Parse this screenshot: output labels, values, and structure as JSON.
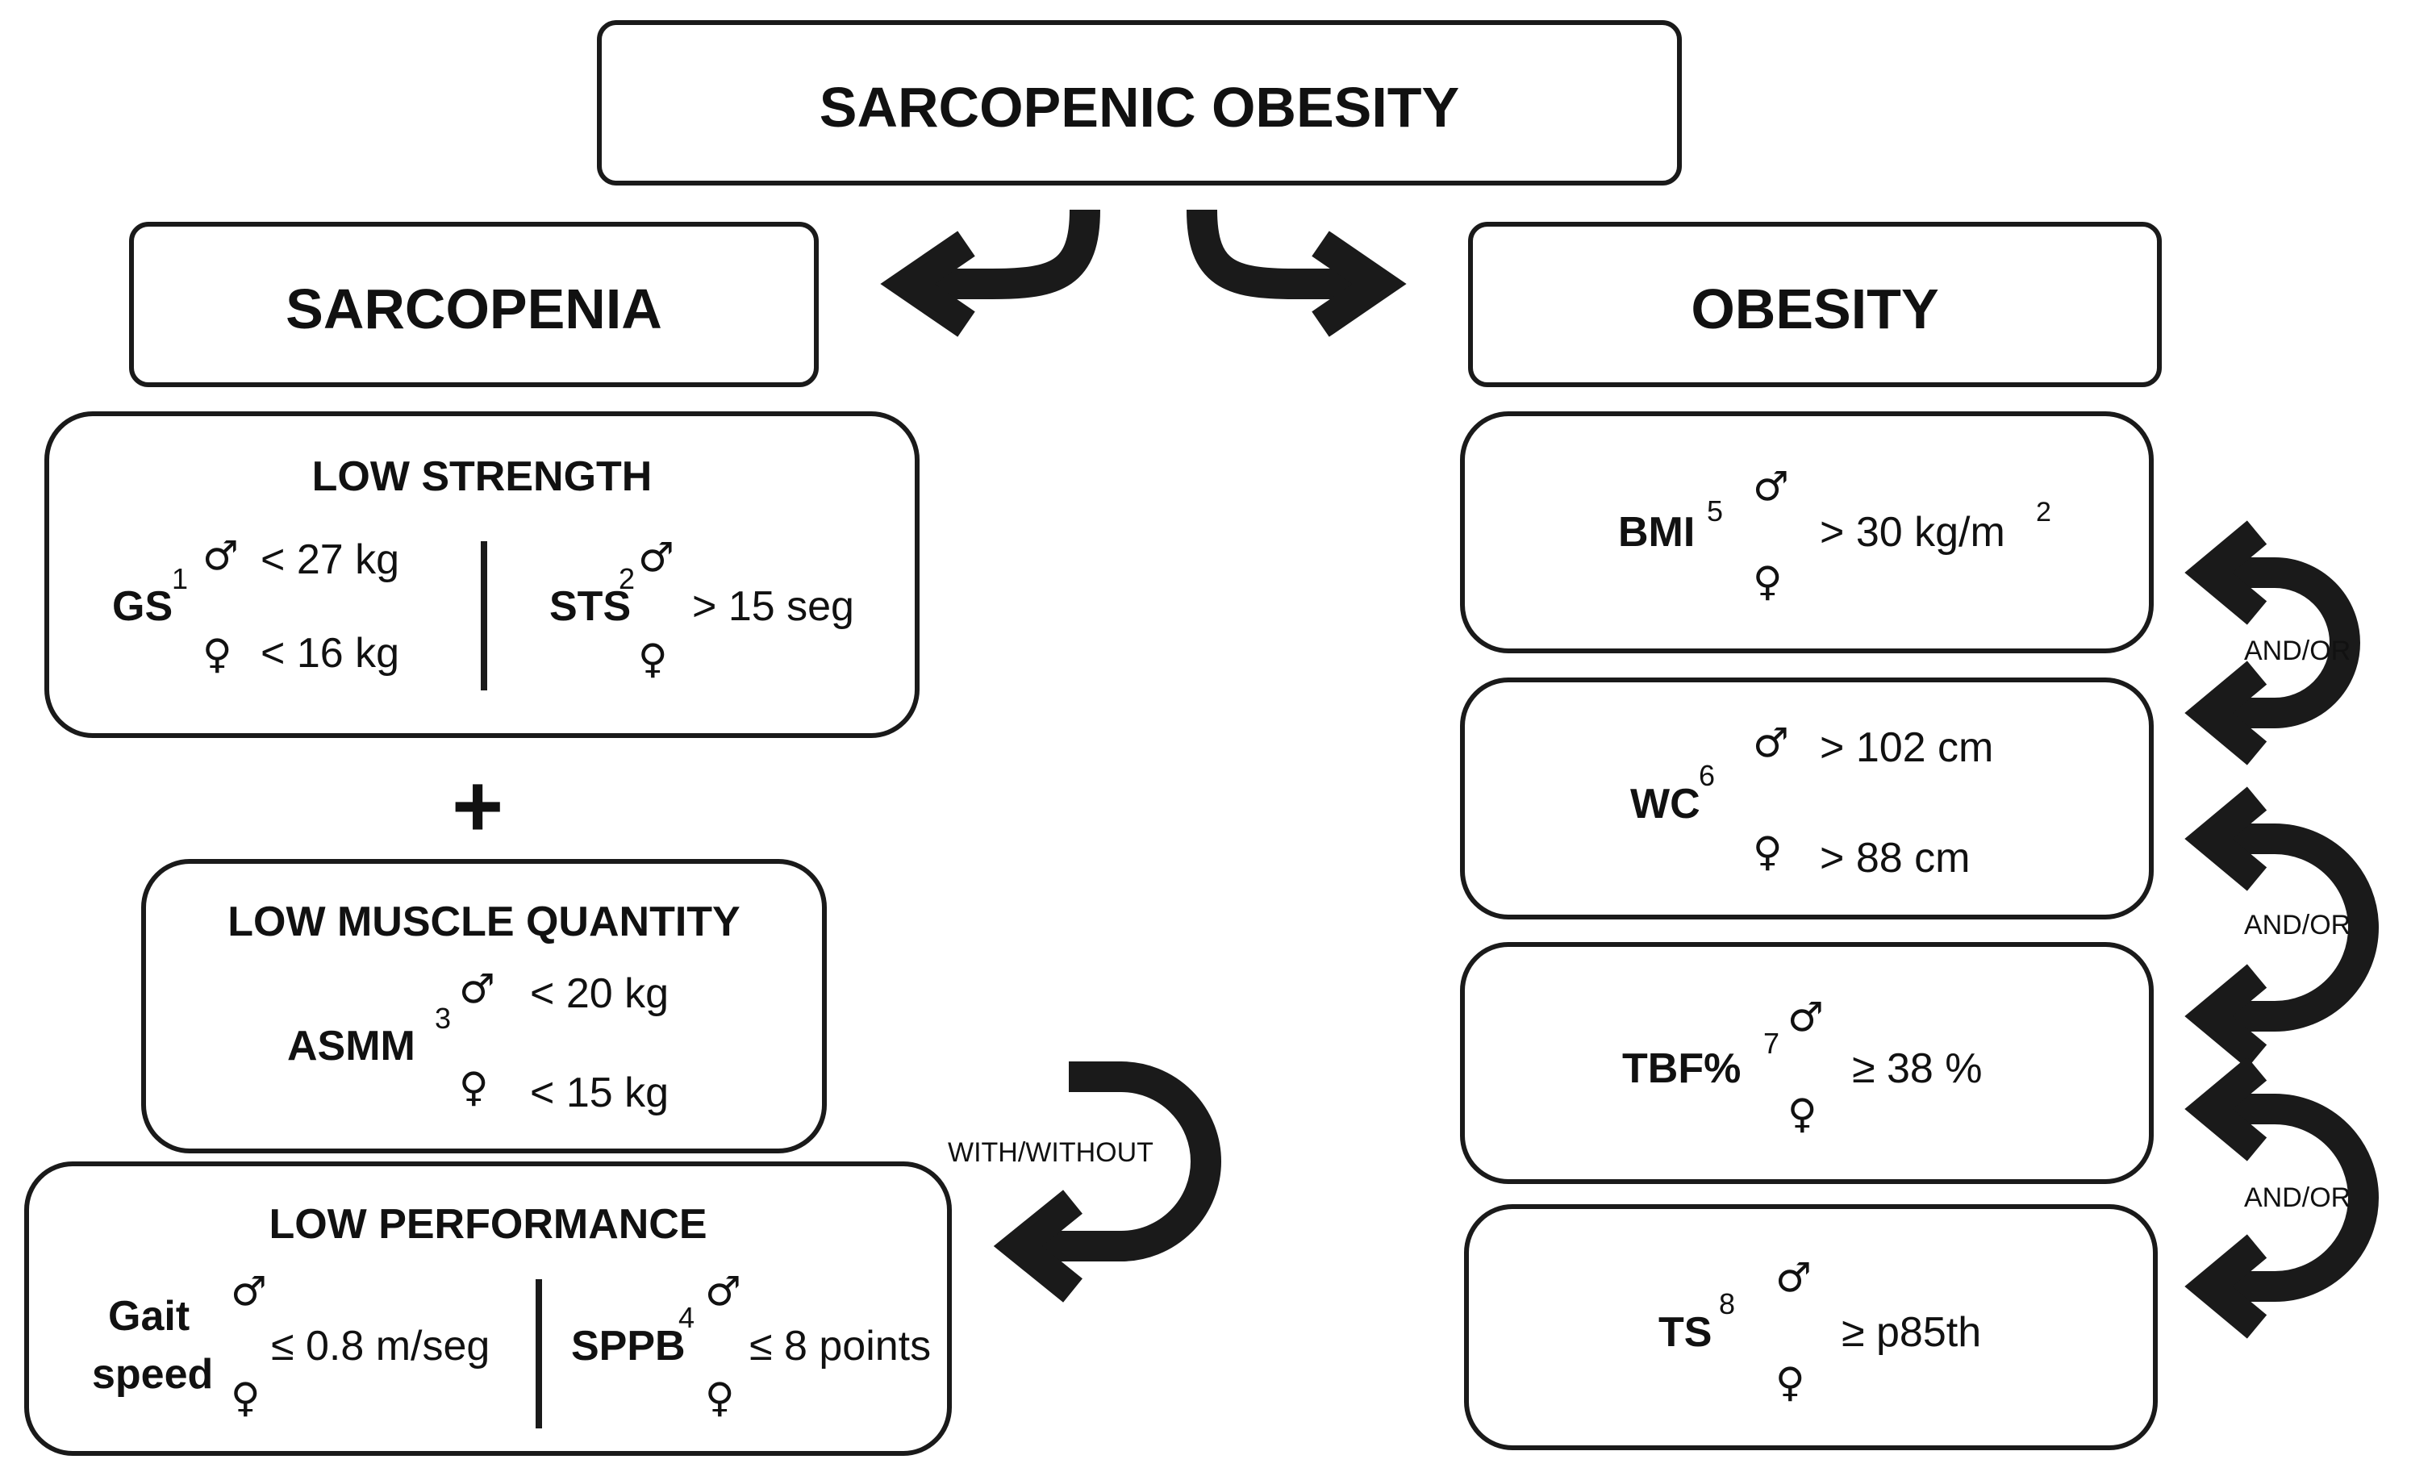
{
  "title": "SARCOPENIC OBESITY",
  "sarcopenia": {
    "label": "SARCOPENIA",
    "low_strength": {
      "title": "LOW STRENGTH",
      "gs": {
        "label": "GS",
        "ref": "1",
        "male": "< 27 kg",
        "female": "< 16 kg"
      },
      "sts": {
        "label": "STS",
        "ref": "2",
        "value": "> 15 seg"
      }
    },
    "plus": "+",
    "low_muscle_quantity": {
      "title": "LOW MUSCLE QUANTITY",
      "asmm": {
        "label": "ASMM",
        "ref": "3",
        "male": "< 20 kg",
        "female": "< 15 kg"
      }
    },
    "connector_with_without": "WITH/WITHOUT",
    "low_performance": {
      "title": "LOW PERFORMANCE",
      "gait": {
        "label_line1": "Gait",
        "label_line2": "speed",
        "value": "≤ 0.8 m/seg"
      },
      "sppb": {
        "label": "SPPB",
        "ref": "4",
        "value": "≤ 8 points"
      }
    }
  },
  "obesity": {
    "label": "OBESITY",
    "bmi": {
      "label": "BMI",
      "ref": "5",
      "value": "> 30 kg/m",
      "value_sup": "2"
    },
    "wc": {
      "label": "WC",
      "ref": "6",
      "male": "> 102 cm",
      "female": "> 88 cm"
    },
    "tbf": {
      "label": "TBF%",
      "ref": "7",
      "value": "≥ 38 %"
    },
    "ts": {
      "label": "TS",
      "ref": "8",
      "value": "≥ p85th"
    },
    "connectors": [
      "AND/OR",
      "AND/OR",
      "AND/OR"
    ]
  },
  "symbols": {
    "male": "♂",
    "female": "♀"
  },
  "colors": {
    "stroke": "#1a1a1a",
    "background": "#ffffff"
  }
}
